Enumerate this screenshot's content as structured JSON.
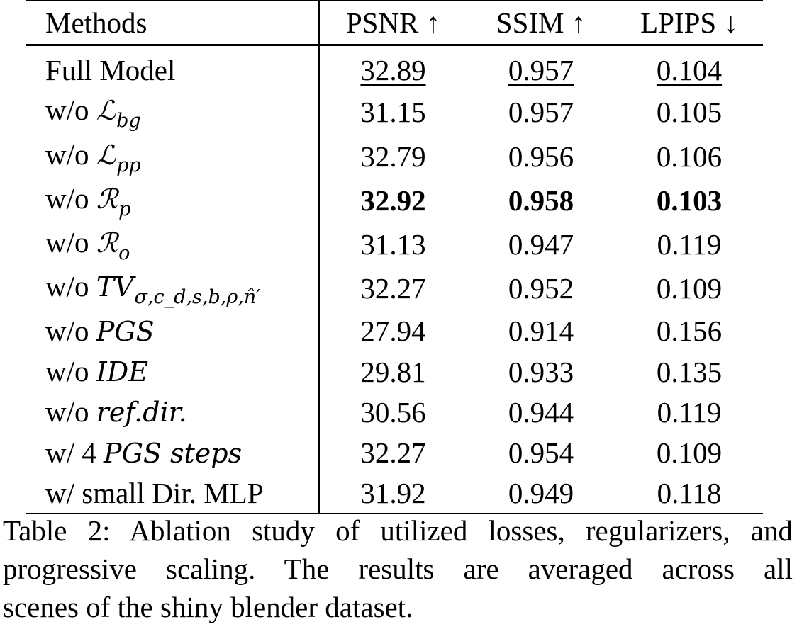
{
  "table": {
    "headers": [
      "Methods",
      "PSNR ↑",
      "SSIM ↑",
      "LPIPS ↓"
    ],
    "rows": [
      {
        "prefix": "Full Model",
        "math": "",
        "sub": "",
        "psnr": "32.89",
        "ssim": "0.957",
        "lpips": "0.104",
        "style": "underline"
      },
      {
        "prefix": "w/o",
        "math": "ℒ",
        "sub": "bg",
        "psnr": "31.15",
        "ssim": "0.957",
        "lpips": "0.105",
        "style": ""
      },
      {
        "prefix": "w/o",
        "math": "ℒ",
        "sub": "pp",
        "psnr": "32.79",
        "ssim": "0.956",
        "lpips": "0.106",
        "style": ""
      },
      {
        "prefix": "w/o",
        "math": "ℛ",
        "sub": "p",
        "psnr": "32.92",
        "ssim": "0.958",
        "lpips": "0.103",
        "style": "bold"
      },
      {
        "prefix": "w/o",
        "math": "ℛ",
        "sub": "o",
        "psnr": "31.13",
        "ssim": "0.947",
        "lpips": "0.119",
        "style": ""
      },
      {
        "prefix": "w/o",
        "math": "TV",
        "sub": "σ,c_d,s,b,ρ,n̂′",
        "psnr": "32.27",
        "ssim": "0.952",
        "lpips": "0.109",
        "style": ""
      },
      {
        "prefix": "w/o",
        "math": "PGS",
        "sub": "",
        "psnr": "27.94",
        "ssim": "0.914",
        "lpips": "0.156",
        "style": ""
      },
      {
        "prefix": "w/o",
        "math": "IDE",
        "sub": "",
        "psnr": "29.81",
        "ssim": "0.933",
        "lpips": "0.135",
        "style": ""
      },
      {
        "prefix": "w/o",
        "math": "ref.dir.",
        "sub": "",
        "psnr": "30.56",
        "ssim": "0.944",
        "lpips": "0.119",
        "style": ""
      },
      {
        "prefix": "w/ 4",
        "math": "PGS steps",
        "sub": "",
        "psnr": "32.27",
        "ssim": "0.954",
        "lpips": "0.109",
        "style": ""
      },
      {
        "prefix": "w/ small Dir. MLP",
        "math": "",
        "sub": "",
        "psnr": "31.92",
        "ssim": "0.949",
        "lpips": "0.118",
        "style": ""
      }
    ]
  },
  "caption": {
    "lines": [
      "Table 2: Ablation study of utilized losses, regularizers, and",
      "progressive scaling. The results are averaged across all",
      "scenes of the shiny blender dataset."
    ]
  }
}
